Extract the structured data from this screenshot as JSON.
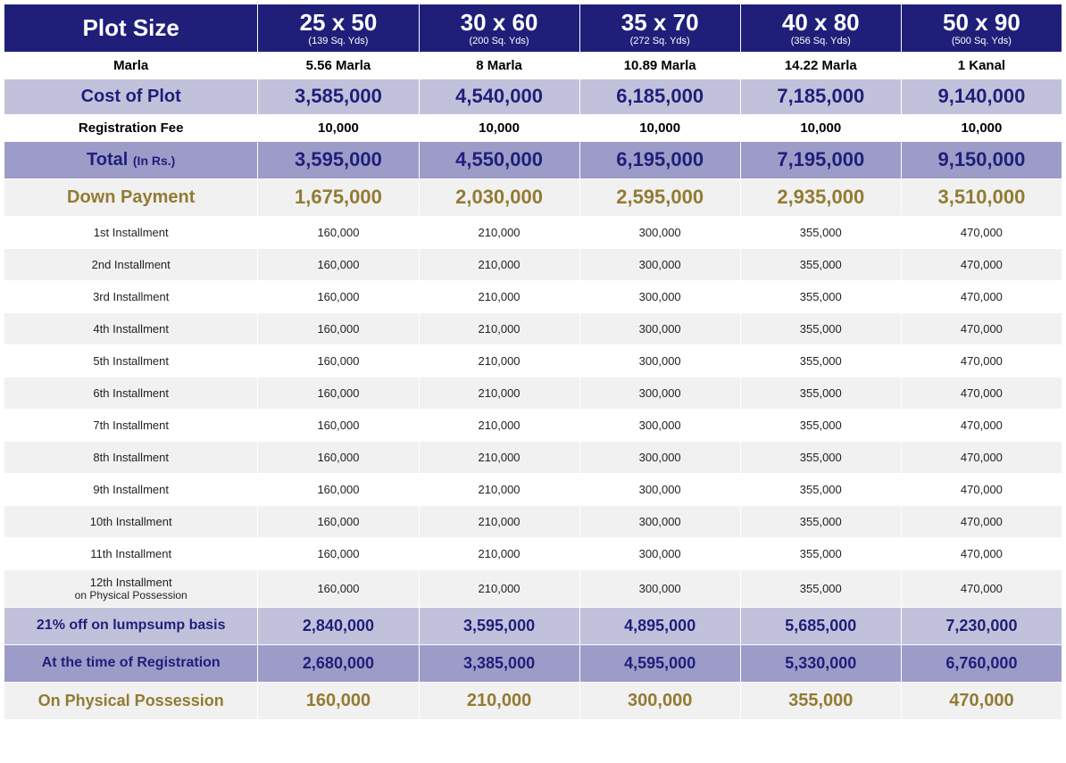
{
  "table": {
    "type": "table",
    "colors": {
      "header_bg": "#1f1f7a",
      "header_text": "#ffffff",
      "purple_light": "#c2c1dc",
      "purple_mid": "#9d9cc9",
      "grey_light": "#f1f1f1",
      "white": "#ffffff",
      "navy_text": "#1f1f7a",
      "gold_text": "#927b32",
      "black_text": "#000000",
      "border": "#ffffff"
    },
    "header": {
      "label": "Plot Size",
      "cols": [
        {
          "main": "25 x 50",
          "sub": "(139 Sq. Yds)"
        },
        {
          "main": "30 x 60",
          "sub": "(200 Sq. Yds)"
        },
        {
          "main": "35 x 70",
          "sub": "(272 Sq. Yds)"
        },
        {
          "main": "40 x 80",
          "sub": "(356 Sq. Yds)"
        },
        {
          "main": "50 x 90",
          "sub": "(500 Sq. Yds)"
        }
      ]
    },
    "marla": {
      "label": "Marla",
      "vals": [
        "5.56 Marla",
        "8 Marla",
        "10.89 Marla",
        "14.22 Marla",
        "1 Kanal"
      ]
    },
    "cost": {
      "label": "Cost of Plot",
      "vals": [
        "3,585,000",
        "4,540,000",
        "6,185,000",
        "7,185,000",
        "9,140,000"
      ]
    },
    "reg": {
      "label": "Registration Fee",
      "vals": [
        "10,000",
        "10,000",
        "10,000",
        "10,000",
        "10,000"
      ]
    },
    "total": {
      "label": "Total",
      "label_sub": "(In Rs.)",
      "vals": [
        "3,595,000",
        "4,550,000",
        "6,195,000",
        "7,195,000",
        "9,150,000"
      ]
    },
    "down": {
      "label": "Down Payment",
      "vals": [
        "1,675,000",
        "2,030,000",
        "2,595,000",
        "2,935,000",
        "3,510,000"
      ]
    },
    "installments": [
      {
        "label": "1st Installment",
        "vals": [
          "160,000",
          "210,000",
          "300,000",
          "355,000",
          "470,000"
        ]
      },
      {
        "label": "2nd Installment",
        "vals": [
          "160,000",
          "210,000",
          "300,000",
          "355,000",
          "470,000"
        ]
      },
      {
        "label": "3rd Installment",
        "vals": [
          "160,000",
          "210,000",
          "300,000",
          "355,000",
          "470,000"
        ]
      },
      {
        "label": "4th Installment",
        "vals": [
          "160,000",
          "210,000",
          "300,000",
          "355,000",
          "470,000"
        ]
      },
      {
        "label": "5th Installment",
        "vals": [
          "160,000",
          "210,000",
          "300,000",
          "355,000",
          "470,000"
        ]
      },
      {
        "label": "6th Installment",
        "vals": [
          "160,000",
          "210,000",
          "300,000",
          "355,000",
          "470,000"
        ]
      },
      {
        "label": "7th Installment",
        "vals": [
          "160,000",
          "210,000",
          "300,000",
          "355,000",
          "470,000"
        ]
      },
      {
        "label": "8th Installment",
        "vals": [
          "160,000",
          "210,000",
          "300,000",
          "355,000",
          "470,000"
        ]
      },
      {
        "label": "9th Installment",
        "vals": [
          "160,000",
          "210,000",
          "300,000",
          "355,000",
          "470,000"
        ]
      },
      {
        "label": "10th Installment",
        "vals": [
          "160,000",
          "210,000",
          "300,000",
          "355,000",
          "470,000"
        ]
      },
      {
        "label": "11th Installment",
        "vals": [
          "160,000",
          "210,000",
          "300,000",
          "355,000",
          "470,000"
        ]
      },
      {
        "label": "12th Installment",
        "label_sub": "on Physical Possession",
        "vals": [
          "160,000",
          "210,000",
          "300,000",
          "355,000",
          "470,000"
        ]
      }
    ],
    "lump": {
      "label": "21% off on lumpsump basis",
      "vals": [
        "2,840,000",
        "3,595,000",
        "4,895,000",
        "5,685,000",
        "7,230,000"
      ]
    },
    "atreg": {
      "label": "At the time of Registration",
      "vals": [
        "2,680,000",
        "3,385,000",
        "4,595,000",
        "5,330,000",
        "6,760,000"
      ]
    },
    "poss": {
      "label": "On Physical Possession",
      "vals": [
        "160,000",
        "210,000",
        "300,000",
        "355,000",
        "470,000"
      ]
    }
  }
}
